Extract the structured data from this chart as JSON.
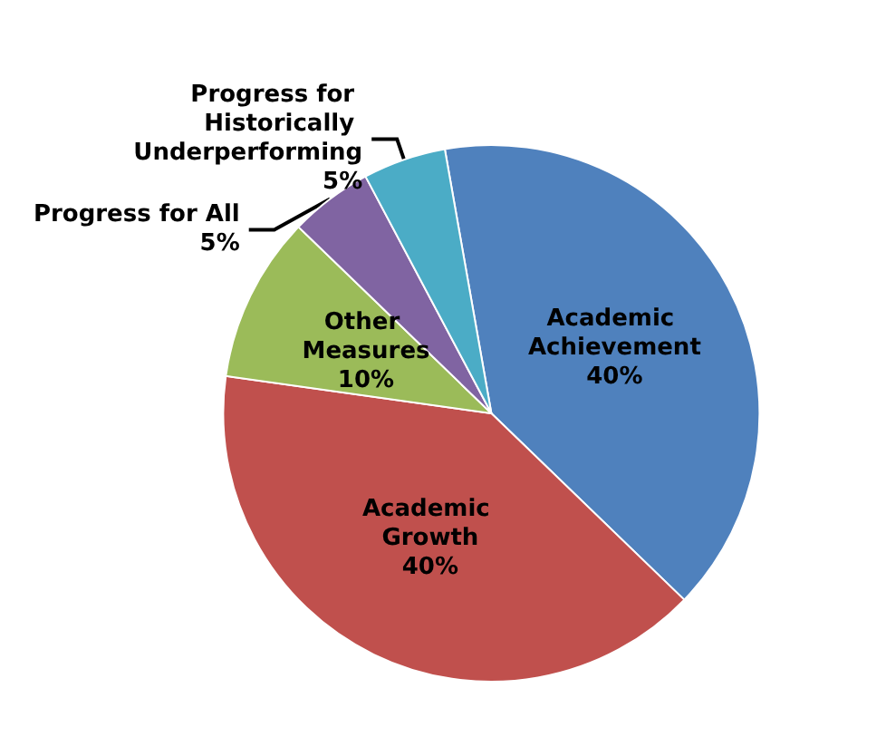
{
  "chart_data": {
    "type": "pie",
    "categories": [
      "Academic Achievement",
      "Academic Growth",
      "Other Measures",
      "Progress for All",
      "Progress for Historically Underperforming"
    ],
    "values": [
      40,
      40,
      10,
      5,
      5
    ],
    "colors": [
      "#4f81bd",
      "#c0504d",
      "#9bbb59",
      "#8064a2",
      "#4bacc6"
    ],
    "value_labels": [
      "40%",
      "40%",
      "10%",
      "5%",
      "5%"
    ],
    "legend": false
  }
}
